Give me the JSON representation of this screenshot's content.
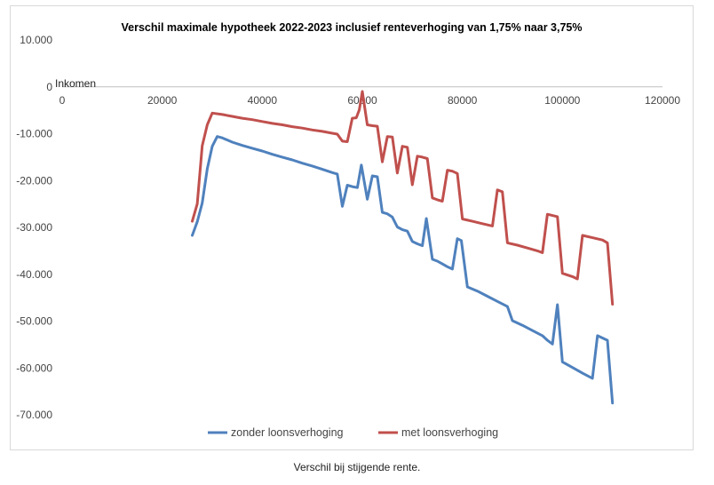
{
  "caption": "Verschil bij stijgende rente.",
  "chart_data": {
    "type": "line",
    "title": "Verschil maximale hypotheek 2022-2023 inclusief renteverhoging van 1,75% naar 3,75%",
    "xlabel": "Inkomen",
    "ylabel": "",
    "xlim": [
      0,
      120000
    ],
    "ylim": [
      -70000,
      10000
    ],
    "x_ticks": [
      0,
      20000,
      40000,
      60000,
      80000,
      100000,
      120000
    ],
    "x_tick_labels": [
      "0",
      "20000",
      "40000",
      "60000",
      "80000",
      "100000",
      "120000"
    ],
    "y_ticks": [
      10000,
      0,
      -10000,
      -20000,
      -30000,
      -40000,
      -50000,
      -60000,
      -70000
    ],
    "y_tick_labels": [
      "10.000",
      "0",
      "-10.000",
      "-20.000",
      "-30.000",
      "-40.000",
      "-50.000",
      "-60.000",
      "-70.000"
    ],
    "grid": false,
    "legend_position": "bottom",
    "series": [
      {
        "name": "zonder loonsverhoging",
        "color": "#4f81bd",
        "points": [
          [
            26000,
            -31700
          ],
          [
            27000,
            -28800
          ],
          [
            28000,
            -24800
          ],
          [
            29000,
            -17500
          ],
          [
            30000,
            -12700
          ],
          [
            31000,
            -10600
          ],
          [
            32000,
            -10900
          ],
          [
            34000,
            -11800
          ],
          [
            36000,
            -12500
          ],
          [
            38000,
            -13100
          ],
          [
            40000,
            -13700
          ],
          [
            42000,
            -14400
          ],
          [
            44000,
            -15000
          ],
          [
            46000,
            -15600
          ],
          [
            48000,
            -16300
          ],
          [
            50000,
            -16900
          ],
          [
            52000,
            -17600
          ],
          [
            54000,
            -18300
          ],
          [
            55000,
            -18600
          ],
          [
            56000,
            -25500
          ],
          [
            57000,
            -21000
          ],
          [
            58000,
            -21300
          ],
          [
            59000,
            -21500
          ],
          [
            59800,
            -16700
          ],
          [
            61000,
            -24000
          ],
          [
            62000,
            -19000
          ],
          [
            63000,
            -19200
          ],
          [
            64000,
            -26800
          ],
          [
            65000,
            -27100
          ],
          [
            66000,
            -27800
          ],
          [
            67000,
            -29900
          ],
          [
            68000,
            -30500
          ],
          [
            69000,
            -30800
          ],
          [
            70000,
            -33000
          ],
          [
            71000,
            -33500
          ],
          [
            72000,
            -33900
          ],
          [
            72800,
            -28100
          ],
          [
            74000,
            -36800
          ],
          [
            75000,
            -37200
          ],
          [
            76000,
            -37800
          ],
          [
            77000,
            -38400
          ],
          [
            78000,
            -38900
          ],
          [
            79000,
            -32400
          ],
          [
            79800,
            -32800
          ],
          [
            81000,
            -42700
          ],
          [
            83000,
            -43600
          ],
          [
            85000,
            -44700
          ],
          [
            87000,
            -45800
          ],
          [
            89000,
            -46900
          ],
          [
            90000,
            -49900
          ],
          [
            92000,
            -50900
          ],
          [
            94000,
            -52000
          ],
          [
            96000,
            -53100
          ],
          [
            97000,
            -54100
          ],
          [
            98000,
            -54900
          ],
          [
            99000,
            -46500
          ],
          [
            100000,
            -58700
          ],
          [
            102000,
            -59900
          ],
          [
            104000,
            -61100
          ],
          [
            106000,
            -62200
          ],
          [
            107000,
            -53100
          ],
          [
            109000,
            -54100
          ],
          [
            110000,
            -67500
          ]
        ]
      },
      {
        "name": "met loonsverhoging",
        "color": "#c0504d",
        "points": [
          [
            26000,
            -28700
          ],
          [
            27000,
            -25000
          ],
          [
            28000,
            -12600
          ],
          [
            29000,
            -8100
          ],
          [
            30000,
            -5600
          ],
          [
            32000,
            -5900
          ],
          [
            34000,
            -6300
          ],
          [
            36000,
            -6700
          ],
          [
            38000,
            -7000
          ],
          [
            40000,
            -7400
          ],
          [
            42000,
            -7800
          ],
          [
            44000,
            -8100
          ],
          [
            46000,
            -8500
          ],
          [
            48000,
            -8800
          ],
          [
            50000,
            -9200
          ],
          [
            52000,
            -9500
          ],
          [
            54000,
            -9900
          ],
          [
            55000,
            -10100
          ],
          [
            56000,
            -11600
          ],
          [
            57000,
            -11700
          ],
          [
            58000,
            -6700
          ],
          [
            58800,
            -6600
          ],
          [
            59400,
            -4900
          ],
          [
            60000,
            -1000
          ],
          [
            61000,
            -8100
          ],
          [
            62000,
            -8300
          ],
          [
            63000,
            -8400
          ],
          [
            64000,
            -16000
          ],
          [
            65000,
            -10600
          ],
          [
            66000,
            -10700
          ],
          [
            67000,
            -18400
          ],
          [
            68000,
            -12700
          ],
          [
            69000,
            -12900
          ],
          [
            70000,
            -20900
          ],
          [
            71000,
            -14800
          ],
          [
            72000,
            -15000
          ],
          [
            73000,
            -15300
          ],
          [
            74000,
            -23700
          ],
          [
            75000,
            -24100
          ],
          [
            76000,
            -24400
          ],
          [
            77000,
            -17800
          ],
          [
            78000,
            -18000
          ],
          [
            79000,
            -18500
          ],
          [
            80000,
            -28200
          ],
          [
            82000,
            -28700
          ],
          [
            84000,
            -29200
          ],
          [
            86000,
            -29700
          ],
          [
            87000,
            -22000
          ],
          [
            88000,
            -22400
          ],
          [
            89000,
            -33300
          ],
          [
            91000,
            -33800
          ],
          [
            93000,
            -34400
          ],
          [
            95000,
            -35000
          ],
          [
            96000,
            -35400
          ],
          [
            97000,
            -27200
          ],
          [
            99000,
            -27700
          ],
          [
            100000,
            -39800
          ],
          [
            102000,
            -40500
          ],
          [
            103000,
            -41000
          ],
          [
            104000,
            -31700
          ],
          [
            106000,
            -32200
          ],
          [
            108000,
            -32700
          ],
          [
            109000,
            -33300
          ],
          [
            110000,
            -46400
          ]
        ]
      }
    ]
  }
}
